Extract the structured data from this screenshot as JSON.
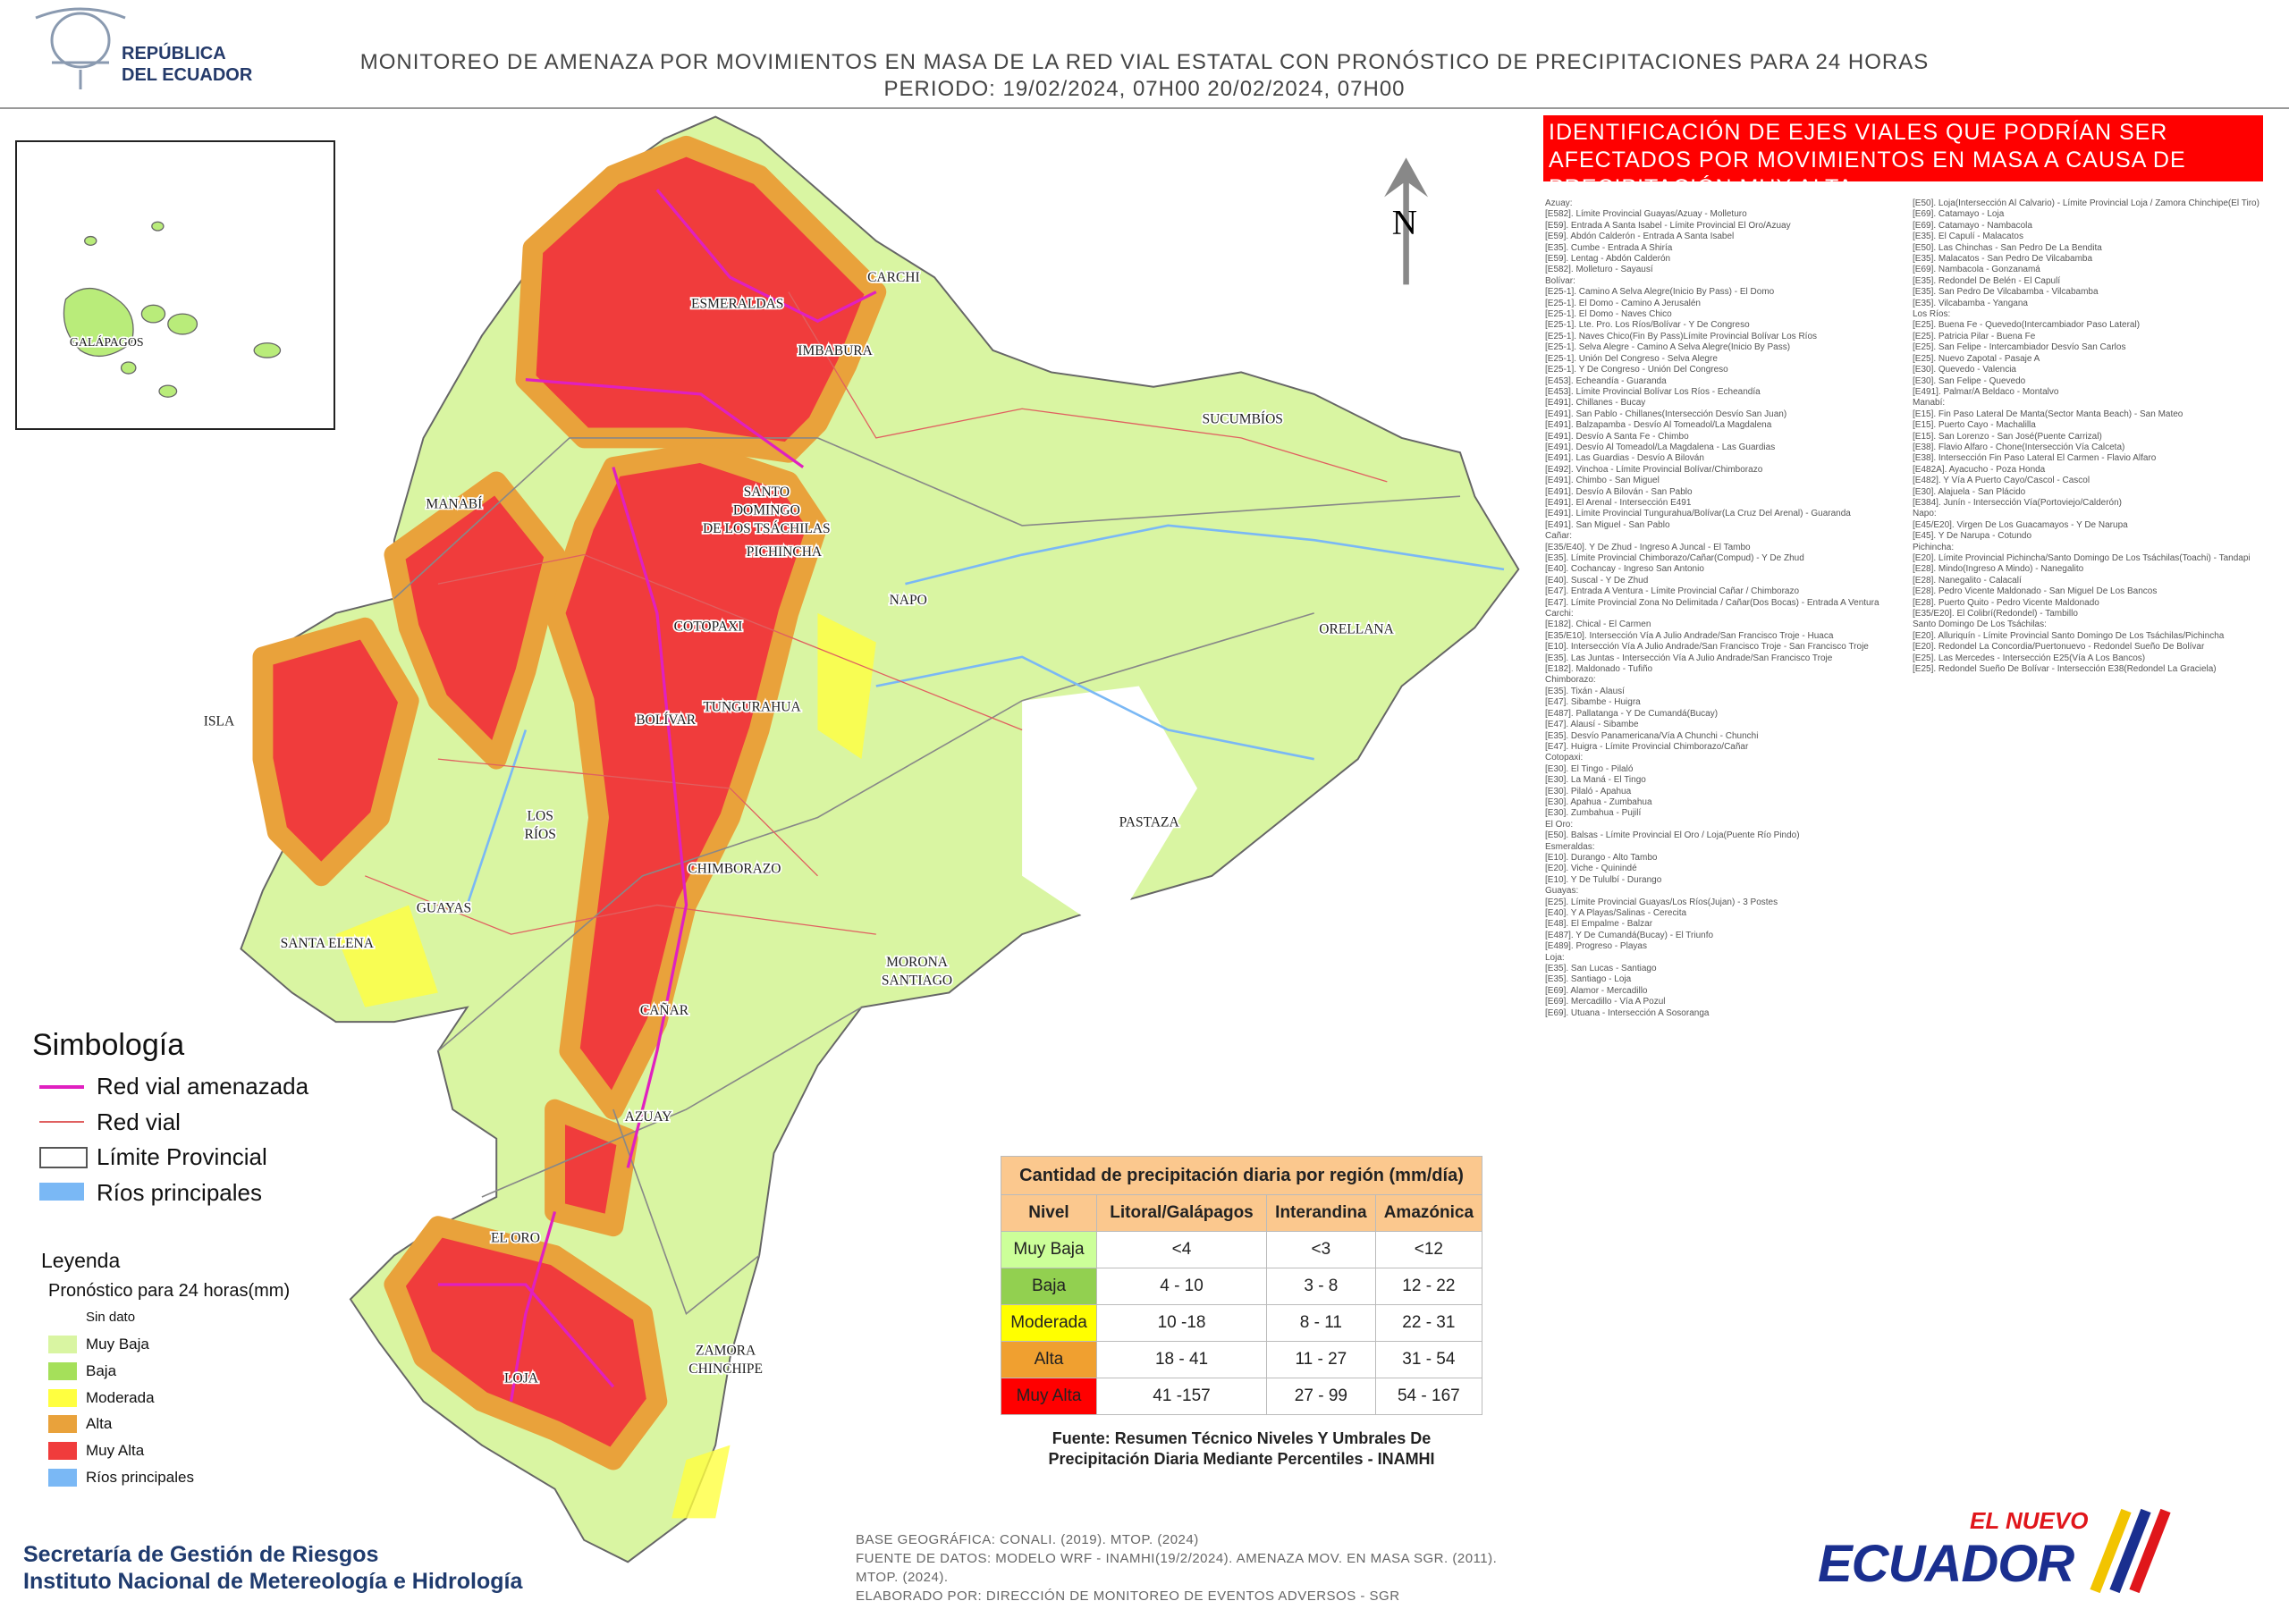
{
  "header": {
    "country": [
      "REPÚBLICA",
      "DEL ECUADOR"
    ],
    "title": "MONITOREO DE AMENAZA POR MOVIMIENTOS EN MASA DE LA RED VIAL  ESTATAL  CON PRONÓSTICO  DE  PRECIPITACIONES PARA 24 HORAS",
    "period": "PERIODO: 19/02/2024, 07H00 20/02/2024, 07H00"
  },
  "map": {
    "north": "N",
    "inset_label": "GALÁPAGOS",
    "provinces": [
      [
        "CARCHI"
      ],
      [
        "ESMERALDAS"
      ],
      [
        "IMBABURA"
      ],
      [
        "SUCUMBÍOS"
      ],
      [
        "MANABÍ"
      ],
      [
        "SANTO",
        "DOMINGO",
        "DE LOS TSÁCHILAS"
      ],
      [
        "PICHINCHA"
      ],
      [
        "NAPO"
      ],
      [
        "ORELLANA"
      ],
      [
        "COTOPAXI"
      ],
      [
        "BOLÍVAR"
      ],
      [
        "TUNGURAHUA"
      ],
      [
        "ISLA"
      ],
      [
        "LOS",
        "RÍOS"
      ],
      [
        "PASTAZA"
      ],
      [
        "CHIMBORAZO"
      ],
      [
        "GUAYAS"
      ],
      [
        "SANTA ELENA"
      ],
      [
        "MORONA",
        "SANTIAGO"
      ],
      [
        "CAÑAR"
      ],
      [
        "AZUAY"
      ],
      [
        "EL ORO"
      ],
      [
        "ZAMORA",
        "CHINCHIPE"
      ],
      [
        "LOJA"
      ]
    ]
  },
  "symbology": {
    "title": "Simbología",
    "items": [
      {
        "label": "Red vial amenazada",
        "color": "#e020c0"
      },
      {
        "label": "Red vial",
        "color": "#e06060"
      },
      {
        "label": "Límite Provincial",
        "color": "#555555"
      },
      {
        "label": "Ríos principales",
        "color": "#7ab8f5"
      }
    ]
  },
  "legend": {
    "title": "Leyenda",
    "subtitle": "Pronóstico para 24 horas(mm)",
    "no_data": "Sin dato",
    "items": [
      {
        "label": "Muy Baja",
        "color": "#d9f5a2"
      },
      {
        "label": "Baja",
        "color": "#a5e05a"
      },
      {
        "label": "Moderada",
        "color": "#ffff40"
      },
      {
        "label": "Alta",
        "color": "#e9a23b"
      },
      {
        "label": "Muy Alta",
        "color": "#f03c3c"
      },
      {
        "label": "Ríos principales",
        "color": "#7ab8f5"
      }
    ]
  },
  "table": {
    "title": "Cantidad de precipitación diaria por región (mm/día)",
    "headers": [
      "Nivel",
      "Litoral/Galápagos",
      "Interandina",
      "Amazónica"
    ],
    "rows": [
      {
        "level": "Muy Baja",
        "color": "#ccff99",
        "cells": [
          "<4",
          "<3",
          "<12"
        ]
      },
      {
        "level": "Baja",
        "color": "#92d050",
        "cells": [
          "4 - 10",
          "3 - 8",
          "12 - 22"
        ]
      },
      {
        "level": "Moderada",
        "color": "#ffff00",
        "cells": [
          "10 -18",
          "8 - 11",
          "22 - 31"
        ]
      },
      {
        "level": "Alta",
        "color": "#f0a030",
        "cells": [
          "18 - 41",
          "11 - 27",
          "31 - 54"
        ]
      },
      {
        "level": "Muy Alta",
        "color": "#ff0000",
        "cells": [
          "41 -157",
          "27 - 99",
          "54 - 167"
        ]
      }
    ],
    "source": [
      "Fuente: Resumen Técnico Niveles Y Umbrales De",
      "Precipitación Diaria Mediante Percentiles - INAMHI"
    ]
  },
  "roads": {
    "title": "IDENTIFICACIÓN DE EJES VIALES QUE PODRÍAN SER AFECTADOS POR MOVIMIENTOS EN MASA A CAUSA DE PRECIPITACIÓN MUY ALTA",
    "columns": [
      [
        "Azuay:",
        "[E582]. Límite Provincial Guayas/Azuay - Molleturo",
        "[E59]. Entrada A Santa Isabel - Límite Provincial El Oro/Azuay",
        "[E59]. Abdón Calderón - Entrada A Santa Isabel",
        "[E35]. Cumbe - Entrada A Shiría",
        "[E59]. Lentag - Abdón Calderón",
        "[E582]. Molleturo - Sayausí",
        "Bolívar:",
        "[E25-1]. Camino A Selva Alegre(Inicio By Pass) - El Domo",
        "[E25-1]. El Domo - Camino A Jerusalén",
        "[E25-1]. El Domo - Naves Chico",
        "[E25-1]. Lte. Pro. Los Ríos/Bolívar - Y De Congreso",
        "[E25-1]. Naves Chico(Fin By Pass)Límite Provincial Bolívar Los Ríos",
        "[E25-1]. Selva Alegre - Camino A Selva Alegre(Inicio By Pass)",
        "[E25-1]. Unión Del Congreso - Selva Alegre",
        "[E25-1]. Y De Congreso - Unión Del Congreso",
        "[E453]. Echeandía - Guaranda",
        "[E453]. Límite Provincial Bolívar Los Ríos - Echeandía",
        "[E491]. Chillanes - Bucay",
        "[E491]. San Pablo - Chillanes(Intersección Desvío San Juan)",
        "[E491]. Balzapamba - Desvío Al Tomeadol/La Magdalena",
        "[E491]. Desvío A Santa Fe - Chimbo",
        "[E491]. Desvío Al Tomeadol/La Magdalena - Las Guardias",
        "[E491]. Las Guardias - Desvío A Bilován",
        "[E492]. Vinchoa - Límite Provincial Bolívar/Chimborazo",
        "[E491]. Chimbo - San Miguel",
        "[E491]. Desvío A Bilován - San Pablo",
        "[E491]. El Arenal - Intersección E491",
        "[E491]. Límite Provincial Tungurahua/Bolívar(La Cruz Del Arenal) - Guaranda",
        "[E491]. San Miguel - San Pablo",
        "Cañar:",
        "[E35/E40]. Y De Zhud - Ingreso A Juncal - El Tambo",
        "[E35]. Límite Provincial Chimborazo/Cañar(Compud) - Y De Zhud",
        "[E40]. Cochancay - Ingreso San Antonio",
        "[E40]. Suscal - Y De Zhud",
        "[E47]. Entrada A Ventura - Límite Provincial Cañar / Chimborazo",
        "[E47]. Límite Provincial Zona No Delimitada / Cañar(Dos Bocas) - Entrada A Ventura",
        "Carchi:",
        "[E182]. Chical - El Carmen",
        "[E35/E10]. Intersección Vía A Julio Andrade/San Francisco Troje - Huaca",
        "[E10]. Intersección Vía A Julio Andrade/San Francisco Troje - San Francisco Troje",
        "[E35]. Las Juntas - Intersección Vía A Julio Andrade/San Francisco Troje",
        "[E182]. Maldonado - Tufiño",
        "Chimborazo:",
        "[E35]. Tixán - Alausí",
        "[E47]. Sibambe - Huigra",
        "[E487]. Pallatanga - Y De Cumandá(Bucay)",
        "[E47]. Alausí - Sibambe",
        "[E35]. Desvío Panamericana/Vía A Chunchi - Chunchi",
        "[E47]. Huigra - Límite Provincial Chimborazo/Cañar",
        "Cotopaxi:",
        "[E30]. El Tingo - Pilaló",
        "[E30]. La Maná - El Tingo",
        "[E30]. Pilaló - Apahua",
        "[E30]. Apahua - Zumbahua",
        "[E30]. Zumbahua - Pujilí",
        "El Oro:",
        "[E50]. Balsas - Límite Provincial El Oro / Loja(Puente Río Pindo)",
        "Esmeraldas:",
        "[E10]. Durango - Alto Tambo",
        "[E20]. Viche - Quinindé",
        "[E10]. Y De Tululbí - Durango",
        "Guayas:",
        "[E25]. Límite Provincial Guayas/Los Ríos(Jujan) - 3 Postes",
        "[E40]. Y A Playas/Salinas - Cerecita",
        "[E48]. El Empalme - Balzar",
        "[E487]. Y De Cumandá(Bucay) - El Triunfo",
        "[E489]. Progreso - Playas",
        "Loja:",
        "[E35]. San Lucas - Santiago",
        "[E35]. Santiago - Loja",
        "[E69]. Alamor - Mercadillo",
        "[E69]. Mercadillo - Vía A Pozul",
        "[E69]. Utuana - Intersección A Sosoranga"
      ],
      [
        "[E50]. Loja(Intersección Al Calvario) - Límite Provincial Loja / Zamora Chinchipe(El Tiro)",
        "[E69]. Catamayo - Loja",
        "[E69]. Catamayo - Nambacola",
        "[E35]. El Capulí - Malacatos",
        "[E50]. Las Chinchas - San Pedro De La Bendita",
        "[E35]. Malacatos - San Pedro De Vilcabamba",
        "[E69]. Nambacola - Gonzanamá",
        "[E35]. Redondel De Belén - El Capulí",
        "[E35]. San Pedro De Vilcabamba - Vilcabamba",
        "[E35]. Vilcabamba - Yangana",
        "Los Ríos:",
        "[E25]. Buena Fe - Quevedo(Intercambiador Paso Lateral)",
        "[E25]. Patricia Pilar - Buena Fe",
        "[E25]. San Felipe - Intercambiador Desvío San Carlos",
        "[E25]. Nuevo Zapotal - Pasaje A",
        "[E30]. Quevedo - Valencia",
        "[E30]. San Felipe - Quevedo",
        "[E491]. Palmar/A Beldaco - Montalvo",
        "Manabí:",
        "[E15]. Fin Paso Lateral De Manta(Sector Manta Beach) - San Mateo",
        "[E15]. Puerto Cayo - Machalilla",
        "[E15]. San Lorenzo - San José(Puente Carrizal)",
        "[E38]. Flavio Alfaro - Chone(Intersección Vía Calceta)",
        "[E38]. Intersección Fin Paso Lateral El Carmen - Flavio Alfaro",
        "[E482A]. Ayacucho - Poza Honda",
        "[E482]. Y Vía A Puerto Cayo/Cascol - Cascol",
        "[E30]. Alajuela - San Plácido",
        "[E384]. Junín - Intersección Vía(Portoviejo/Calderón)",
        "Napo:",
        "[E45/E20]. Virgen De Los Guacamayos - Y De Narupa",
        "[E45]. Y De Narupa - Cotundo",
        "Pichincha:",
        "[E20]. Límite Provincial Pichincha/Santo Domingo De Los Tsáchilas(Toachi) - Tandapi",
        "[E28]. Mindo(Ingreso A Mindo) - Nanegalito",
        "[E28]. Nanegalito - Calacalí",
        "[E28]. Pedro Vicente Maldonado - San Miguel De Los Bancos",
        "[E28]. Puerto Quito - Pedro Vicente Maldonado",
        "[E35/E20]. El Colibrí(Redondel) - Tambillo",
        "Santo Domingo De Los Tsáchilas:",
        "[E20]. Alluriquín - Límite Provincial Santo Domingo De Los Tsáchilas/Pichincha",
        "[E20]. Redondel La Concordia/Puertonuevo - Redondel Sueño De Bolívar",
        "[E25]. Las Mercedes - Intersección E25(Vía A Los Bancos)",
        "[E25]. Redondel Sueño De Bolívar - Intersección E38(Redondel La Graciela)"
      ]
    ]
  },
  "notes": [
    "BASE GEOGRÁFICA: CONALI. (2019). MTOP. (2024)",
    "FUENTE DE DATOS: MODELO WRF - INAMHI(19/2/2024).  AMENAZA MOV. EN MASA SGR. (2011).",
    "MTOP. (2024).",
    "ELABORADO POR: DIRECCIÓN DE MONITOREO DE EVENTOS ADVERSOS - SGR"
  ],
  "footer": {
    "orgs": [
      "Secretaría de Gestión de Riesgos",
      "Instituto Nacional de Metereología e Hidrología"
    ],
    "logo": [
      "EL NUEVO",
      "ECUADOR"
    ]
  }
}
